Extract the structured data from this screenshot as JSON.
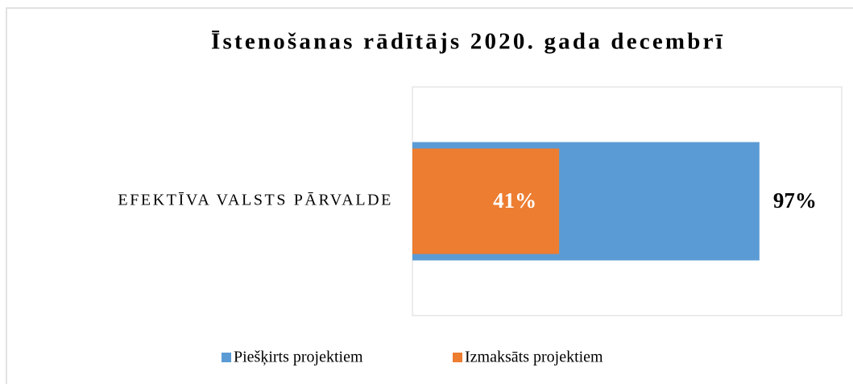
{
  "chart_data": {
    "type": "bar",
    "orientation": "horizontal",
    "overlap": true,
    "title": "Īstenošanas rādītājs 2020. gada decembrī",
    "categories": [
      "EFEKTĪVA VALSTS PĀRVALDE"
    ],
    "series": [
      {
        "name": "Piešķirts projektiem",
        "color": "#5b9bd5",
        "values": [
          97
        ],
        "value_labels": [
          "97%"
        ]
      },
      {
        "name": "Izmaksāts projektiem",
        "color": "#ed7d31",
        "values": [
          41
        ],
        "value_labels": [
          "41%"
        ]
      }
    ],
    "xlim": [
      0,
      120
    ],
    "legend": "bottom"
  }
}
